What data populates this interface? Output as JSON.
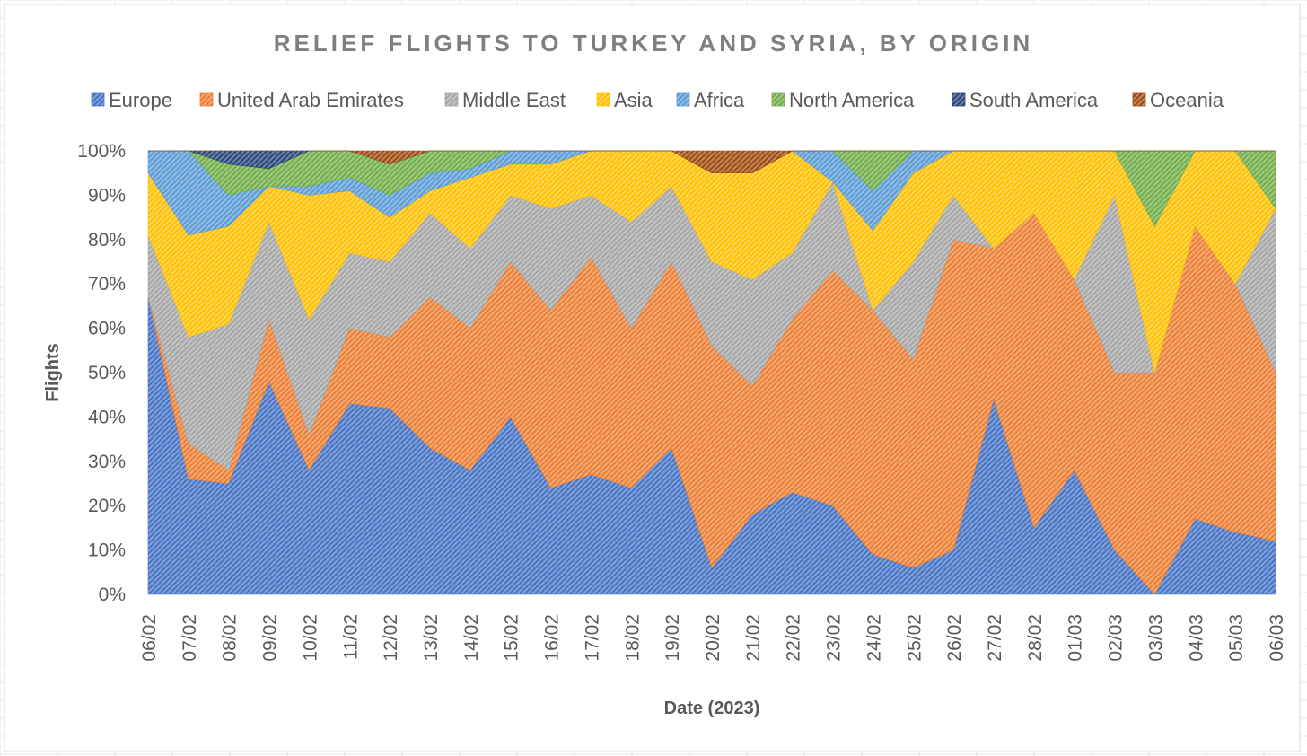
{
  "chart_data": {
    "type": "area",
    "stacked": "percent",
    "title": "RELIEF FLIGHTS TO TURKEY AND SYRIA, BY ORIGIN",
    "xlabel": "Date (2023)",
    "ylabel": "Flights",
    "ylim": [
      0,
      100
    ],
    "yticks": [
      "0%",
      "10%",
      "20%",
      "30%",
      "40%",
      "50%",
      "60%",
      "70%",
      "80%",
      "90%",
      "100%"
    ],
    "grid": false,
    "legend": "top",
    "categories": [
      "06/02",
      "07/02",
      "08/02",
      "09/02",
      "10/02",
      "11/02",
      "12/02",
      "13/02",
      "14/02",
      "15/02",
      "16/02",
      "17/02",
      "18/02",
      "19/02",
      "20/02",
      "21/02",
      "22/02",
      "23/02",
      "24/02",
      "25/02",
      "26/02",
      "27/02",
      "28/02",
      "01/03",
      "02/03",
      "03/03",
      "04/03",
      "05/03",
      "06/03"
    ],
    "series": [
      {
        "name": "Europe",
        "color": "#4472c4",
        "values": [
          67,
          26,
          25,
          48,
          28,
          43,
          42,
          33,
          28,
          40,
          24,
          27,
          24,
          33,
          6,
          18,
          23,
          20,
          9,
          6,
          10,
          44,
          15,
          28,
          10,
          0,
          17,
          14,
          12
        ]
      },
      {
        "name": "United Arab Emirates",
        "color": "#ed7d31",
        "values": [
          0,
          8,
          3,
          14,
          8,
          17,
          16,
          34,
          32,
          35,
          40,
          49,
          36,
          42,
          50,
          29,
          39,
          53,
          55,
          47,
          70,
          34,
          71,
          43,
          40,
          50,
          66,
          56,
          38
        ]
      },
      {
        "name": "Middle East",
        "color": "#a5a5a5",
        "values": [
          14,
          24,
          33,
          22,
          26,
          17,
          17,
          19,
          18,
          15,
          23,
          14,
          24,
          17,
          19,
          24,
          15,
          20,
          0,
          22,
          10,
          0,
          0,
          0,
          40,
          0,
          0,
          0,
          37
        ]
      },
      {
        "name": "Asia",
        "color": "#ffc000",
        "values": [
          14,
          23,
          22,
          8,
          28,
          14,
          10,
          5,
          16,
          7,
          10,
          10,
          16,
          8,
          20,
          24,
          23,
          0,
          18,
          20,
          10,
          22,
          14,
          29,
          10,
          33,
          17,
          30,
          0
        ]
      },
      {
        "name": "Africa",
        "color": "#5b9bd5",
        "values": [
          5,
          19,
          7,
          0,
          2,
          3,
          5,
          4,
          2,
          3,
          3,
          0,
          0,
          0,
          0,
          0,
          0,
          7,
          9,
          5,
          0,
          0,
          0,
          0,
          0,
          0,
          0,
          0,
          0
        ]
      },
      {
        "name": "North America",
        "color": "#70ad47",
        "values": [
          0,
          0,
          7,
          4,
          8,
          6,
          7,
          5,
          4,
          0,
          0,
          0,
          0,
          0,
          0,
          0,
          0,
          0,
          9,
          0,
          0,
          0,
          0,
          0,
          0,
          17,
          0,
          0,
          13
        ]
      },
      {
        "name": "South America",
        "color": "#264478",
        "values": [
          0,
          0,
          3,
          4,
          0,
          0,
          0,
          0,
          0,
          0,
          0,
          0,
          0,
          0,
          0,
          0,
          0,
          0,
          0,
          0,
          0,
          0,
          0,
          0,
          0,
          0,
          0,
          0,
          0
        ]
      },
      {
        "name": "Oceania",
        "color": "#9e480e",
        "values": [
          0,
          0,
          0,
          0,
          0,
          0,
          3,
          0,
          0,
          0,
          0,
          0,
          0,
          0,
          5,
          5,
          0,
          0,
          0,
          0,
          0,
          0,
          0,
          0,
          0,
          0,
          0,
          0,
          0
        ]
      }
    ]
  }
}
